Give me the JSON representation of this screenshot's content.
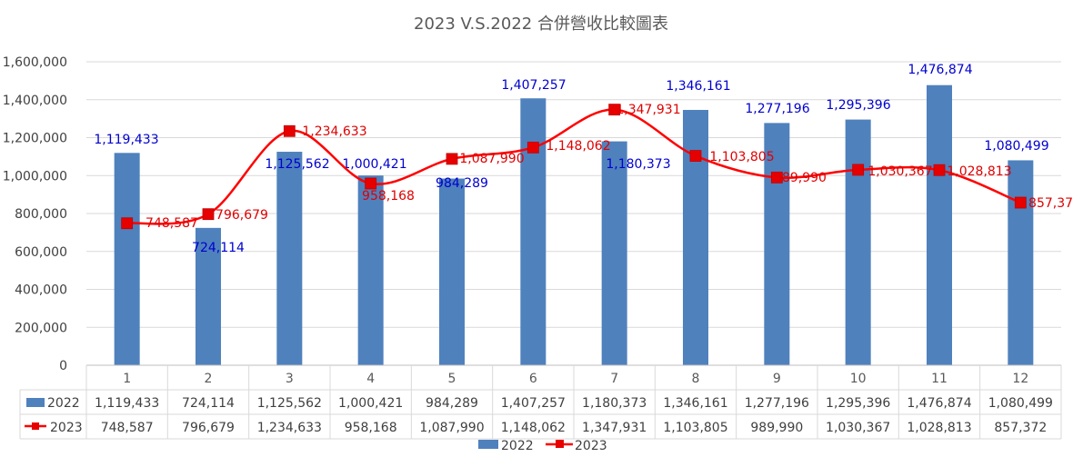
{
  "chart_data": {
    "type": "bar",
    "title": "2023 V.S.2022 合併營收比較圖表",
    "categories": [
      "1",
      "2",
      "3",
      "4",
      "5",
      "6",
      "7",
      "8",
      "9",
      "10",
      "11",
      "12"
    ],
    "ylim": [
      0,
      1600000
    ],
    "yticks": [
      "0",
      "200,000",
      "400,000",
      "600,000",
      "800,000",
      "1,000,000",
      "1,200,000",
      "1,400,000",
      "1,600,000"
    ],
    "ytick_values": [
      0,
      200000,
      400000,
      600000,
      800000,
      1000000,
      1200000,
      1400000,
      1600000
    ],
    "grid": true,
    "legend_position": "bottom",
    "colors": {
      "bar": "#4f81bd",
      "line": "#ff0000",
      "marker": "#e60000",
      "bar_label": "#0000d0",
      "line_label": "#e00000"
    },
    "series": [
      {
        "name": "2022",
        "type": "bar",
        "values": [
          1119433,
          724114,
          1125562,
          1000421,
          984289,
          1407257,
          1180373,
          1346161,
          1277196,
          1295396,
          1476874,
          1080499
        ],
        "labels": [
          "1,119,433",
          "724,114",
          "1,125,562",
          "1,000,421",
          "984,289",
          "1,407,257",
          "1,180,373",
          "1,346,161",
          "1,277,196",
          "1,295,396",
          "1,476,874",
          "1,080,499"
        ]
      },
      {
        "name": "2023",
        "type": "line",
        "values": [
          748587,
          796679,
          1234633,
          958168,
          1087990,
          1148062,
          1347931,
          1103805,
          989990,
          1030367,
          1028813,
          857372
        ],
        "labels": [
          "748,587",
          "796,679",
          "1,234,633",
          "958,168",
          "1,087,990",
          "1,148,062",
          "1,347,931",
          "1,103,805",
          "989,990",
          "1,030,367",
          "1,028,813",
          "857,372"
        ]
      }
    ]
  }
}
